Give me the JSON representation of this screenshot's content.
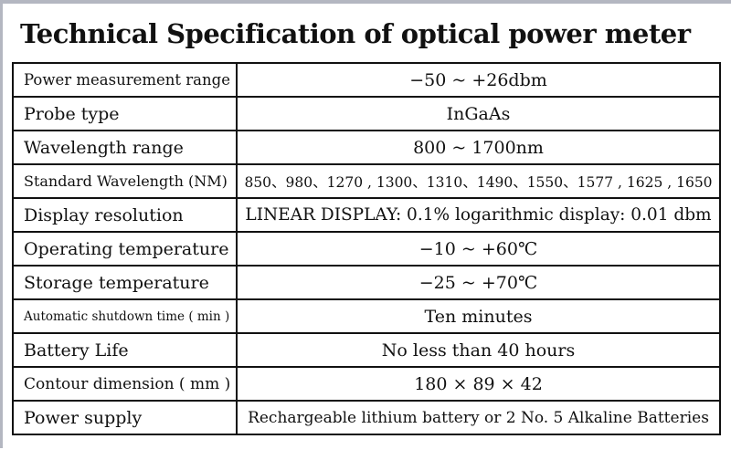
{
  "page": {
    "title": "Technical Specification of optical power meter"
  },
  "table": {
    "rows": [
      {
        "label": "Power measurement range",
        "value": "−50 ~ +26dbm"
      },
      {
        "label": "Probe type",
        "value": "InGaAs"
      },
      {
        "label": "Wavelength range",
        "value": "800 ~ 1700nm"
      },
      {
        "label": "Standard Wavelength (NM)",
        "value": "850、980、1270 , 1300、1310、1490、1550、1577 , 1625 , 1650"
      },
      {
        "label": "Display resolution",
        "value": "LINEAR DISPLAY: 0.1% logarithmic display: 0.01 dbm"
      },
      {
        "label": "Operating temperature",
        "value": "−10 ~ +60℃"
      },
      {
        "label": "Storage temperature",
        "value": "−25 ~ +70℃"
      },
      {
        "label": "Automatic shutdown time ( min )",
        "value": "Ten minutes"
      },
      {
        "label": "Battery Life",
        "value": "No less than 40 hours"
      },
      {
        "label": "Contour dimension ( mm )",
        "value": "180 × 89 × 42"
      },
      {
        "label": "Power supply",
        "value": "Rechargeable lithium battery or 2 No. 5 Alkaline Batteries"
      }
    ]
  }
}
